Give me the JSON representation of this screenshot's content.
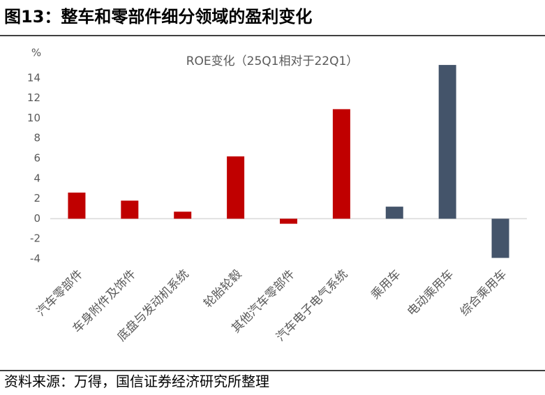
{
  "title": "图13：整车和零部件细分领域的盈利变化",
  "source": "资料来源：万得，国信证券经济研究所整理",
  "chart_data": {
    "type": "bar",
    "subtitle": "ROE变化（25Q1相对于22Q1）",
    "y_label": "%",
    "categories": [
      "汽车零部件",
      "车身附件及饰件",
      "底盘与发动机系统",
      "轮胎轮毂",
      "其他汽车零部件",
      "汽车电子电气系统",
      "乘用车",
      "电动乘用车",
      "综合乘用车"
    ],
    "values": [
      2.6,
      1.8,
      0.7,
      6.2,
      -0.5,
      10.9,
      1.2,
      15.3,
      -3.9
    ],
    "colors": [
      "#c00000",
      "#c00000",
      "#c00000",
      "#c00000",
      "#c00000",
      "#c00000",
      "#44546a",
      "#44546a",
      "#44546a"
    ],
    "ylim": [
      -4,
      16
    ],
    "yticks": [
      -4,
      -2,
      0,
      2,
      4,
      6,
      8,
      10,
      12,
      14
    ],
    "grid": false
  }
}
